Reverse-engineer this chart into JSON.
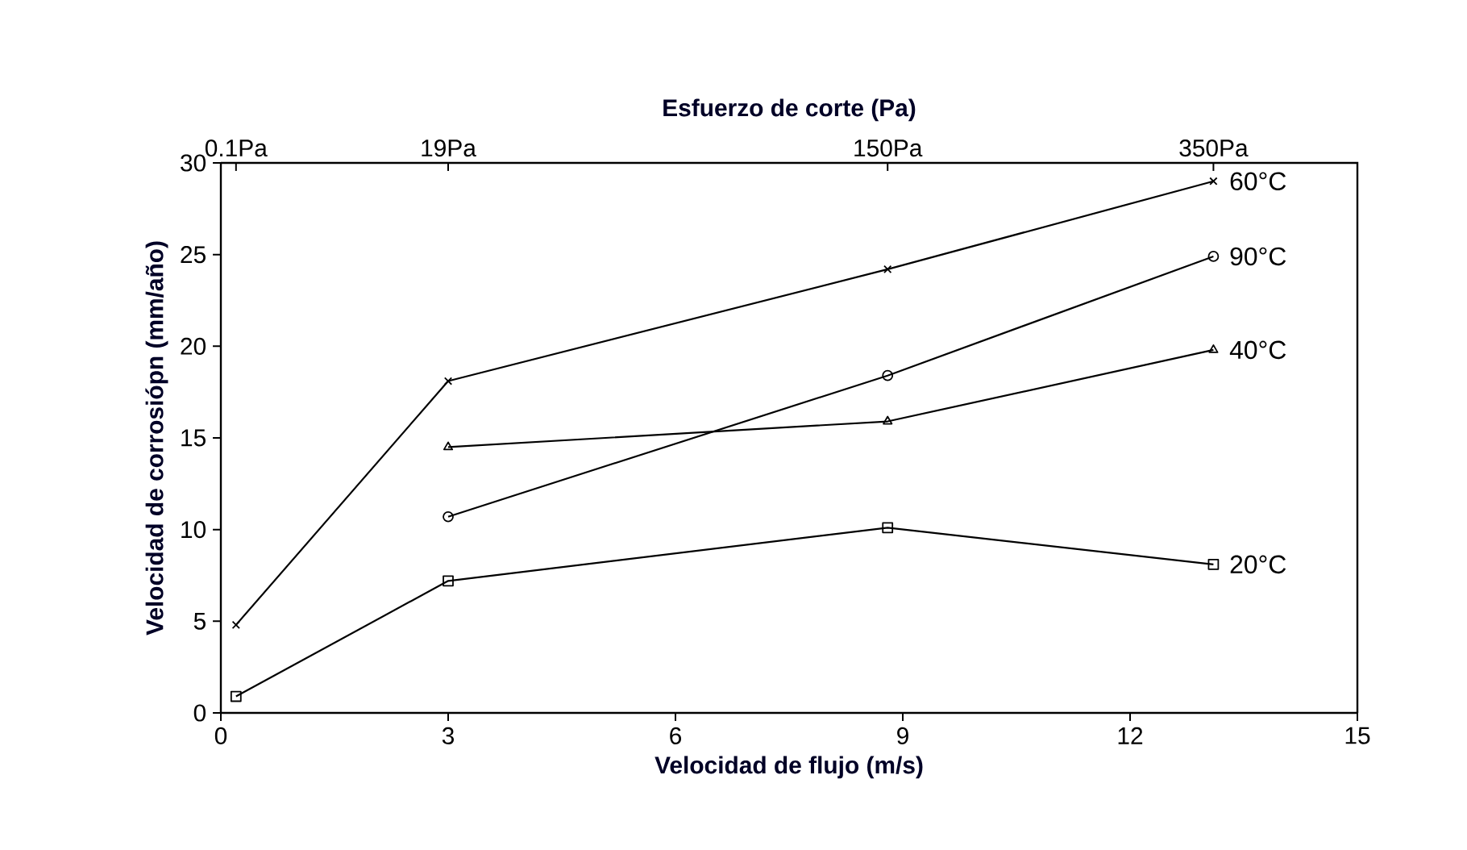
{
  "chart_data": {
    "type": "line",
    "xlabel": "Velocidad de flujo (m/s)",
    "ylabel": "Velocidad de corrosiópn (mm/año)",
    "x2label": "Esfuerzo de corte (Pa)",
    "xlim": [
      0,
      15
    ],
    "xticks": [
      0,
      3,
      6,
      9,
      12,
      15
    ],
    "ylim": [
      0,
      30
    ],
    "yticks": [
      0,
      5,
      10,
      15,
      20,
      25,
      30
    ],
    "annotations": [
      "0.1Pa",
      "19Pa",
      "150Pa",
      "350Pa"
    ],
    "series": [
      {
        "name": "60°C",
        "color": "#000000",
        "marker": "cross",
        "x": [
          0.2,
          3,
          8.8,
          13.1
        ],
        "values": [
          4.8,
          18.1,
          24.2,
          29.0
        ]
      },
      {
        "name": "90°C",
        "color": "#000000",
        "marker": "circle",
        "x": [
          3,
          8.8,
          13.1
        ],
        "values": [
          10.7,
          18.4,
          24.9
        ]
      },
      {
        "name": "40°C",
        "color": "#000000",
        "marker": "triangle",
        "x": [
          3,
          8.8,
          13.1
        ],
        "values": [
          14.5,
          15.9,
          19.8
        ]
      },
      {
        "name": "20°C",
        "color": "#000000",
        "marker": "square",
        "x": [
          0.2,
          3,
          8.8,
          13.1
        ],
        "values": [
          0.9,
          7.2,
          10.1,
          8.1
        ]
      }
    ]
  }
}
